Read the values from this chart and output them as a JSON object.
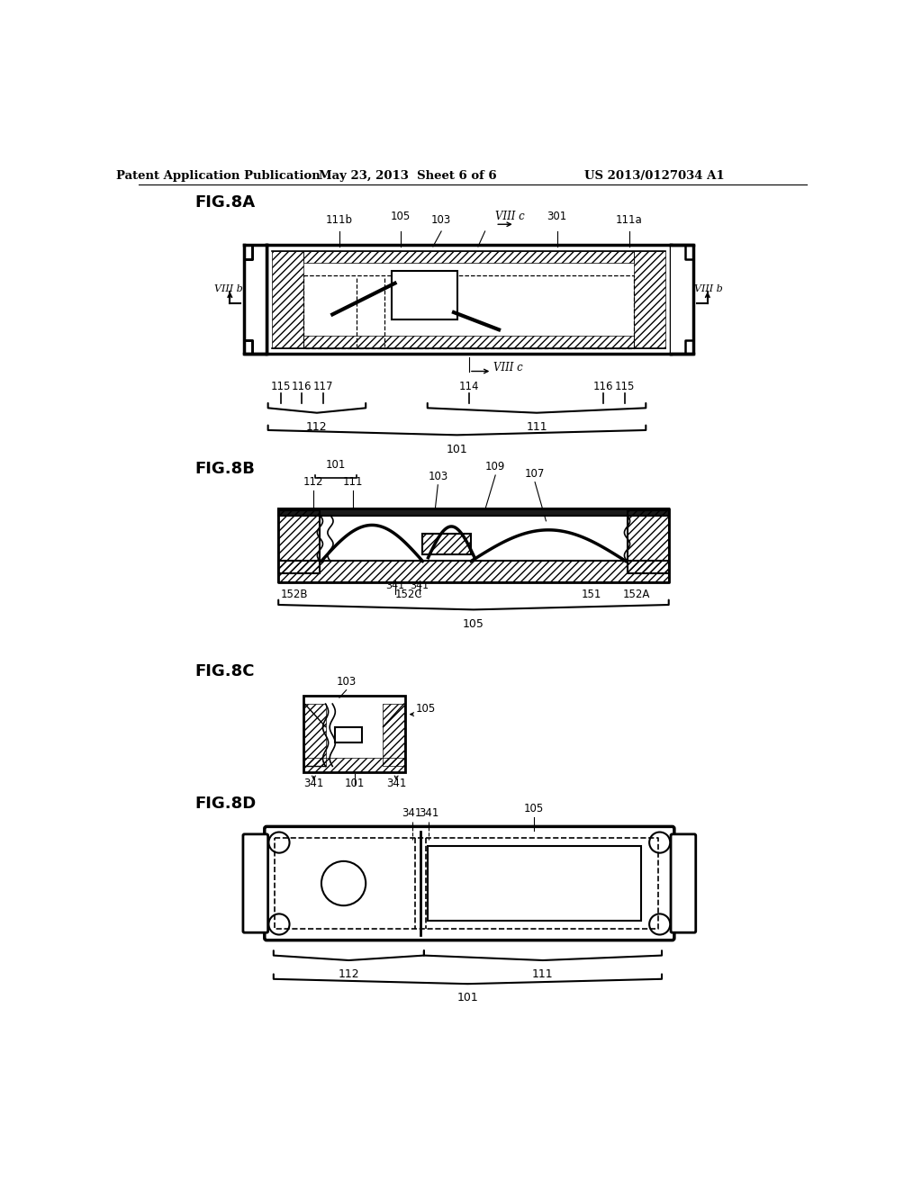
{
  "bg_color": "#ffffff",
  "line_color": "#000000",
  "header_left": "Patent Application Publication",
  "header_mid": "May 23, 2013  Sheet 6 of 6",
  "header_right": "US 2013/0127034 A1"
}
